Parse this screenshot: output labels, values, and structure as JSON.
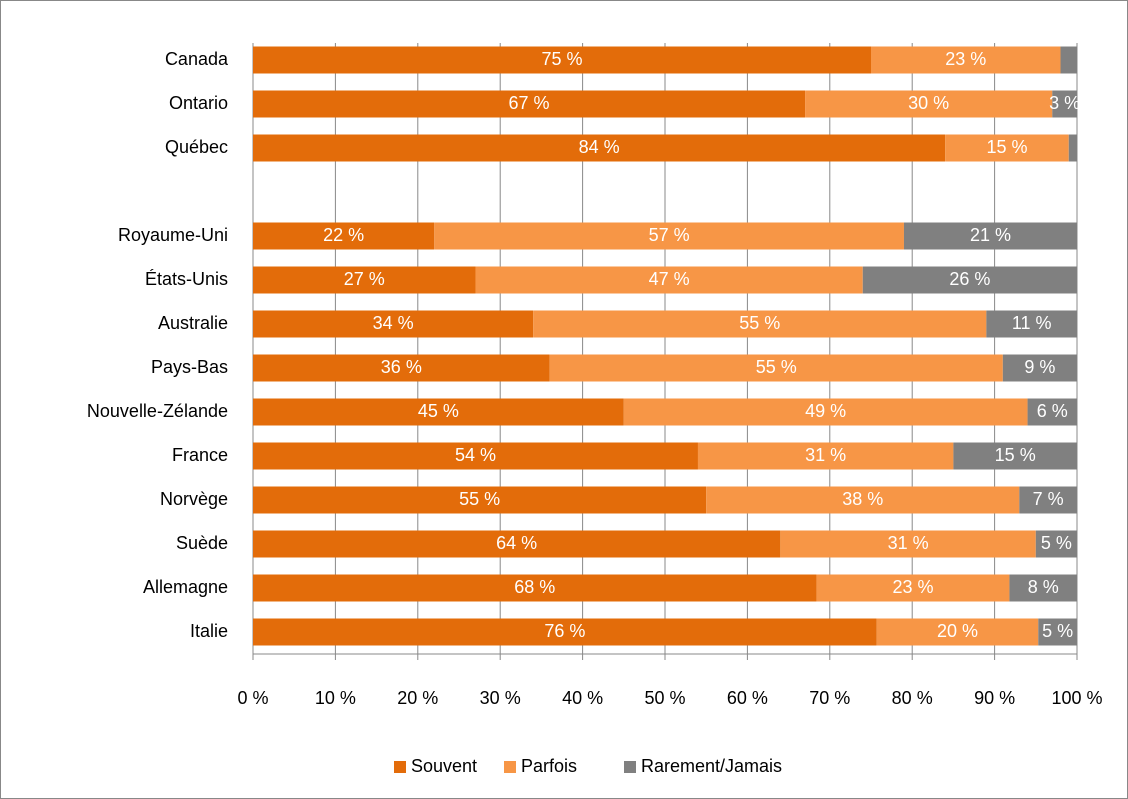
{
  "chart_data": {
    "type": "stacked_barh",
    "categories": [
      "Canada",
      "Ontario",
      "Québec",
      null,
      "Royaume-Uni",
      "États-Unis",
      "Australie",
      "Pays-Bas",
      "Nouvelle-Zélande",
      "France",
      "Norvège",
      "Suède",
      "Allemagne",
      "Italie"
    ],
    "series": [
      {
        "name": "Souvent",
        "color": "#e36c0a",
        "values": [
          75,
          67,
          84,
          null,
          22,
          27,
          34,
          36,
          45,
          54,
          55,
          64,
          68.4,
          75.7
        ],
        "value_labels": [
          "75 %",
          "67 %",
          "84 %",
          null,
          "22 %",
          "27 %",
          "34 %",
          "36 %",
          "45 %",
          "54 %",
          "55 %",
          "64 %",
          "68 %",
          "76 %"
        ]
      },
      {
        "name": "Parfois",
        "color": "#f79646",
        "values": [
          23,
          30,
          15,
          null,
          57,
          47,
          55,
          55,
          49,
          31,
          38,
          31,
          23.4,
          19.6
        ],
        "value_labels": [
          "23 %",
          "30 %",
          "15 %",
          null,
          "57 %",
          "47 %",
          "55 %",
          "55 %",
          "49 %",
          "31 %",
          "38 %",
          "31 %",
          "23 %",
          "20 %"
        ]
      },
      {
        "name": "Rarement/Jamais",
        "color": "#808080",
        "values": [
          2,
          3,
          1,
          null,
          21,
          26,
          11,
          9,
          6,
          15,
          7,
          5,
          8.2,
          4.7
        ],
        "value_labels": [
          null,
          "3 %",
          null,
          null,
          "21 %",
          "26 %",
          "11 %",
          "9 %",
          "6 %",
          "15 %",
          "7 %",
          "5 %",
          "8 %",
          "5 %"
        ]
      }
    ],
    "xlim": [
      0,
      100
    ],
    "xticks": [
      {
        "value": 0,
        "label": "0 %"
      },
      {
        "value": 10,
        "label": "10 %"
      },
      {
        "value": 20,
        "label": "20 %"
      },
      {
        "value": 30,
        "label": "30 %"
      },
      {
        "value": 40,
        "label": "40 %"
      },
      {
        "value": 50,
        "label": "50 %"
      },
      {
        "value": 60,
        "label": "60 %"
      },
      {
        "value": 70,
        "label": "70 %"
      },
      {
        "value": 80,
        "label": "80 %"
      },
      {
        "value": 90,
        "label": "90 %"
      },
      {
        "value": 100,
        "label": "100 %"
      }
    ],
    "grid": true,
    "legend": "bottom"
  }
}
